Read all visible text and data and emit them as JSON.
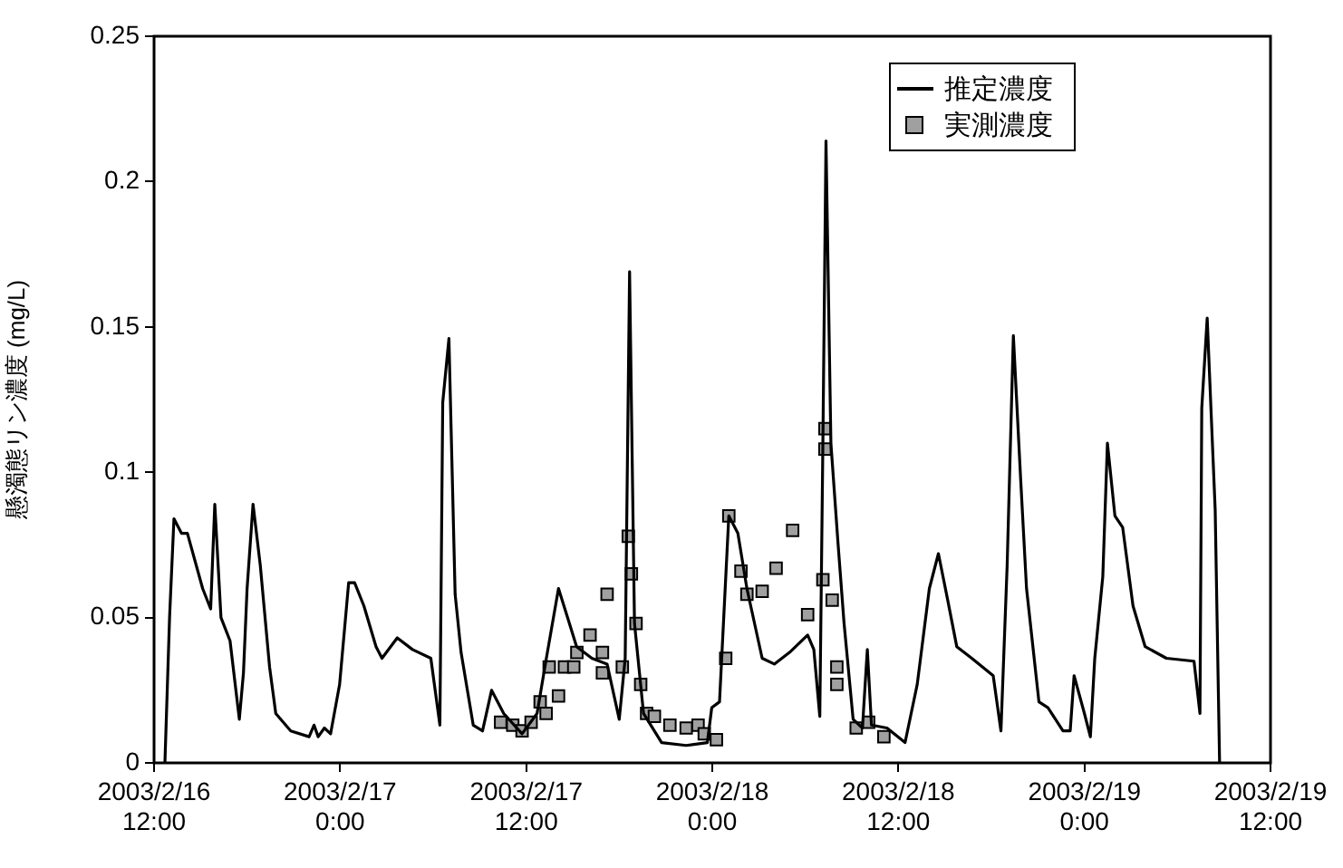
{
  "chart_data": {
    "type": "line",
    "ylabel": "懸濁態リン濃度 (mg/L)",
    "xlim": [
      "2003-02-16T12:00",
      "2003-02-19T12:00"
    ],
    "xticks": [
      {
        "value": "2003-02-16T12:00",
        "label": "2003/2/16 12:00"
      },
      {
        "value": "2003-02-17T00:00",
        "label": "2003/2/17 0:00"
      },
      {
        "value": "2003-02-17T12:00",
        "label": "2003/2/17 12:00"
      },
      {
        "value": "2003-02-18T00:00",
        "label": "2003/2/18 0:00"
      },
      {
        "value": "2003-02-18T12:00",
        "label": "2003/2/18 12:00"
      },
      {
        "value": "2003-02-19T00:00",
        "label": "2003/2/19 0:00"
      },
      {
        "value": "2003-02-19T12:00",
        "label": "2003/2/19 12:00"
      }
    ],
    "ylim": [
      0,
      0.25
    ],
    "yticks": [
      0,
      0.05,
      0.1,
      0.15,
      0.2,
      0.25
    ],
    "grid": false,
    "legend": "top right",
    "series": [
      {
        "name": "推定濃度",
        "type": "line",
        "color": "#000000",
        "marker": "none",
        "line_style": "solid",
        "x": [
          "2003-02-16T12:42",
          "2003-02-16T13:00",
          "2003-02-16T13:17",
          "2003-02-16T13:46",
          "2003-02-16T14:09",
          "2003-02-16T15:08",
          "2003-02-16T15:39",
          "2003-02-16T15:55",
          "2003-02-16T16:19",
          "2003-02-16T16:54",
          "2003-02-16T17:30",
          "2003-02-16T17:46",
          "2003-02-16T18:00",
          "2003-02-16T18:23",
          "2003-02-16T18:51",
          "2003-02-16T19:27",
          "2003-02-16T19:51",
          "2003-02-16T20:49",
          "2003-02-16T22:00",
          "2003-02-16T22:19",
          "2003-02-16T22:35",
          "2003-02-16T22:59",
          "2003-02-16T23:23",
          "2003-02-16T23:58",
          "2003-02-17T00:33",
          "2003-02-17T00:56",
          "2003-02-17T01:32",
          "2003-02-17T02:19",
          "2003-02-17T02:42",
          "2003-02-17T03:41",
          "2003-02-17T04:40",
          "2003-02-17T05:51",
          "2003-02-17T06:26",
          "2003-02-17T06:37",
          "2003-02-17T07:01",
          "2003-02-17T07:25",
          "2003-02-17T07:48",
          "2003-02-17T08:35",
          "2003-02-17T09:11",
          "2003-02-17T09:46",
          "2003-02-17T10:33",
          "2003-02-17T11:44",
          "2003-02-17T12:42",
          "2003-02-17T13:18",
          "2003-02-17T14:05",
          "2003-02-17T14:40",
          "2003-02-17T15:15",
          "2003-02-17T16:14",
          "2003-02-17T17:13",
          "2003-02-17T18:00",
          "2003-02-17T18:23",
          "2003-02-17T18:40",
          "2003-02-17T18:59",
          "2003-02-17T19:34",
          "2003-02-17T20:44",
          "2003-02-17T22:19",
          "2003-02-17T23:41",
          "2003-02-17T23:58",
          "2003-02-18T00:28",
          "2003-02-18T01:04",
          "2003-02-18T01:39",
          "2003-02-18T02:14",
          "2003-02-18T03:13",
          "2003-02-18T04:00",
          "2003-02-18T04:59",
          "2003-02-18T06:09",
          "2003-02-18T06:33",
          "2003-02-18T06:56",
          "2003-02-18T07:08",
          "2003-02-18T07:20",
          "2003-02-18T07:39",
          "2003-02-18T08:07",
          "2003-02-18T08:30",
          "2003-02-18T09:05",
          "2003-02-18T09:41",
          "2003-02-18T10:00",
          "2003-02-18T10:16",
          "2003-02-18T11:16",
          "2003-02-18T12:26",
          "2003-02-18T13:13",
          "2003-02-18T14:00",
          "2003-02-18T14:35",
          "2003-02-18T15:11",
          "2003-02-18T15:46",
          "2003-02-18T16:44",
          "2003-02-18T18:07",
          "2003-02-18T18:37",
          "2003-02-18T19:01",
          "2003-02-18T19:25",
          "2003-02-18T19:53",
          "2003-02-18T20:16",
          "2003-02-18T21:04",
          "2003-02-18T21:39",
          "2003-02-18T22:37",
          "2003-02-18T23:05",
          "2003-02-18T23:20",
          "2003-02-19T00:00",
          "2003-02-19T00:23",
          "2003-02-19T00:40",
          "2003-02-19T01:11",
          "2003-02-19T01:29",
          "2003-02-19T01:58",
          "2003-02-19T02:28",
          "2003-02-19T03:08",
          "2003-02-19T03:55",
          "2003-02-19T05:17",
          "2003-02-19T07:04",
          "2003-02-19T07:27",
          "2003-02-19T07:34",
          "2003-02-19T07:55",
          "2003-02-19T08:26",
          "2003-02-19T08:43"
        ],
        "values": [
          0,
          0.05,
          0.084,
          0.079,
          0.079,
          0.06,
          0.053,
          0.089,
          0.05,
          0.042,
          0.015,
          0.031,
          0.06,
          0.089,
          0.068,
          0.033,
          0.017,
          0.011,
          0.009,
          0.013,
          0.009,
          0.012,
          0.01,
          0.027,
          0.062,
          0.062,
          0.054,
          0.04,
          0.036,
          0.043,
          0.039,
          0.036,
          0.013,
          0.124,
          0.146,
          0.058,
          0.038,
          0.013,
          0.011,
          0.025,
          0.017,
          0.01,
          0.017,
          0.036,
          0.06,
          0.05,
          0.04,
          0.036,
          0.034,
          0.015,
          0.036,
          0.169,
          0.048,
          0.017,
          0.007,
          0.006,
          0.007,
          0.019,
          0.021,
          0.085,
          0.079,
          0.06,
          0.036,
          0.034,
          0.038,
          0.044,
          0.039,
          0.016,
          0.11,
          0.214,
          0.11,
          0.075,
          0.048,
          0.015,
          0.012,
          0.039,
          0.013,
          0.012,
          0.007,
          0.027,
          0.06,
          0.072,
          0.056,
          0.04,
          0.036,
          0.03,
          0.011,
          0.068,
          0.147,
          0.098,
          0.06,
          0.021,
          0.019,
          0.011,
          0.011,
          0.03,
          0.017,
          0.009,
          0.036,
          0.064,
          0.11,
          0.085,
          0.081,
          0.054,
          0.04,
          0.036,
          0.035,
          0.017,
          0.122,
          0.153,
          0.087,
          0
        ]
      },
      {
        "name": "実測濃度",
        "type": "scatter",
        "color": "#a0a0a0",
        "marker": "square",
        "x": [
          "2003-02-17T10:21",
          "2003-02-17T11:08",
          "2003-02-17T11:44",
          "2003-02-17T12:19",
          "2003-02-17T12:54",
          "2003-02-17T13:17",
          "2003-02-17T13:29",
          "2003-02-17T14:05",
          "2003-02-17T14:28",
          "2003-02-17T15:04",
          "2003-02-17T15:16",
          "2003-02-17T16:07",
          "2003-02-17T16:55",
          "2003-02-17T16:55",
          "2003-02-17T17:13",
          "2003-02-17T18:12",
          "2003-02-17T18:35",
          "2003-02-17T18:47",
          "2003-02-17T19:05",
          "2003-02-17T19:23",
          "2003-02-17T19:46",
          "2003-02-17T20:16",
          "2003-02-17T21:16",
          "2003-02-17T22:19",
          "2003-02-17T23:05",
          "2003-02-17T23:29",
          "2003-02-18T00:16",
          "2003-02-18T00:52",
          "2003-02-18T01:04",
          "2003-02-18T01:51",
          "2003-02-18T02:14",
          "2003-02-18T03:13",
          "2003-02-18T04:07",
          "2003-02-18T05:11",
          "2003-02-18T06:09",
          "2003-02-18T07:08",
          "2003-02-18T07:16",
          "2003-02-18T07:16",
          "2003-02-18T07:44",
          "2003-02-18T08:02",
          "2003-02-18T08:02",
          "2003-02-18T09:17",
          "2003-02-18T10:05",
          "2003-02-18T11:04"
        ],
        "values": [
          0.014,
          0.013,
          0.011,
          0.014,
          0.021,
          0.017,
          0.033,
          0.023,
          0.033,
          0.033,
          0.038,
          0.044,
          0.038,
          0.031,
          0.058,
          0.033,
          0.078,
          0.065,
          0.048,
          0.027,
          0.017,
          0.016,
          0.013,
          0.012,
          0.013,
          0.01,
          0.008,
          0.036,
          0.085,
          0.066,
          0.058,
          0.059,
          0.067,
          0.08,
          0.051,
          0.063,
          0.115,
          0.108,
          0.056,
          0.033,
          0.027,
          0.012,
          0.014,
          0.009
        ]
      }
    ]
  }
}
